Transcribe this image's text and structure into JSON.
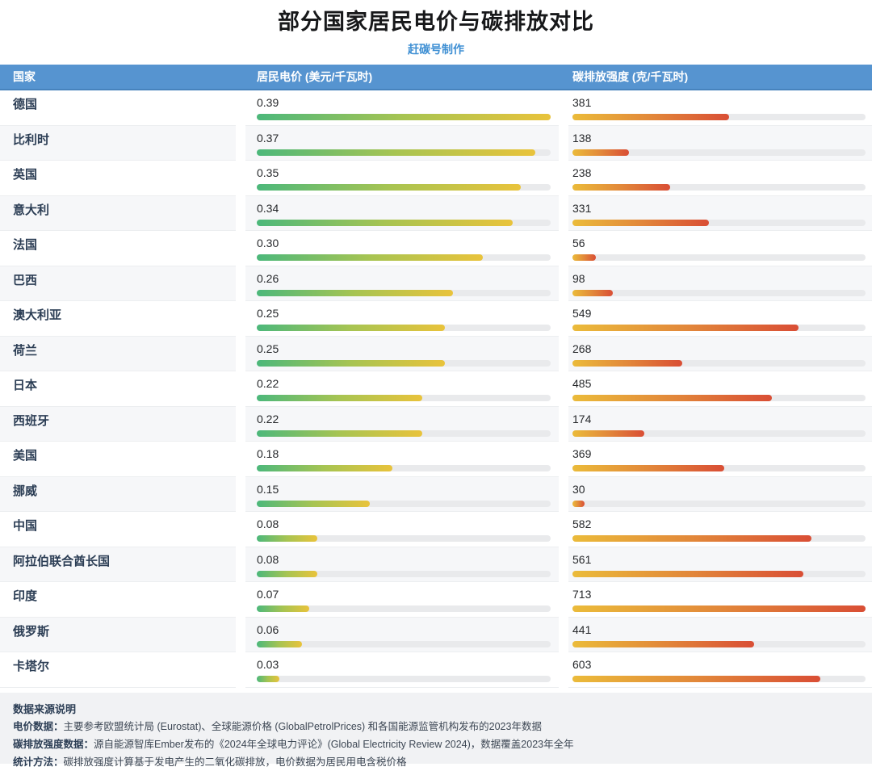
{
  "title": "部分国家居民电价与碳排放对比",
  "subtitle": "赶碳号制作",
  "columns": {
    "country": "国家",
    "price": "居民电价 (美元/千瓦时)",
    "carbon": "碳排放强度 (克/千瓦时)"
  },
  "chart_data": {
    "type": "bar",
    "orientation": "horizontal",
    "title": "部分国家居民电价与碳排放对比",
    "categories": [
      "德国",
      "比利时",
      "英国",
      "意大利",
      "法国",
      "巴西",
      "澳大利亚",
      "荷兰",
      "日本",
      "西班牙",
      "美国",
      "挪威",
      "中国",
      "阿拉伯联合酋长国",
      "印度",
      "俄罗斯",
      "卡塔尔"
    ],
    "series": [
      {
        "name": "居民电价 (美元/千瓦时)",
        "values": [
          0.39,
          0.37,
          0.35,
          0.34,
          0.3,
          0.26,
          0.25,
          0.25,
          0.22,
          0.22,
          0.18,
          0.15,
          0.08,
          0.08,
          0.07,
          0.06,
          0.03
        ],
        "labels": [
          "0.39",
          "0.37",
          "0.35",
          "0.34",
          "0.30",
          "0.26",
          "0.25",
          "0.25",
          "0.22",
          "0.22",
          "0.18",
          "0.15",
          "0.08",
          "0.08",
          "0.07",
          "0.06",
          "0.03"
        ],
        "axis_max": 0.39,
        "bar_gradient": [
          "#4cb87b",
          "#a7c452",
          "#e9c33b"
        ]
      },
      {
        "name": "碳排放强度 (克/千瓦时)",
        "values": [
          381,
          138,
          238,
          331,
          56,
          98,
          549,
          268,
          485,
          174,
          369,
          30,
          582,
          561,
          713,
          441,
          603
        ],
        "labels": [
          "381",
          "138",
          "238",
          "331",
          "56",
          "98",
          "549",
          "268",
          "485",
          "174",
          "369",
          "30",
          "582",
          "561",
          "713",
          "441",
          "603"
        ],
        "axis_max": 713,
        "bar_gradient": [
          "#ebbb3a",
          "#e2883a",
          "#d94e35"
        ]
      }
    ],
    "legend": false,
    "grid": false,
    "track_color": "#e9eaec"
  },
  "footer": {
    "heading": "数据来源说明",
    "notes": [
      {
        "label": "电价数据：",
        "text": "主要参考欧盟统计局 (Eurostat)、全球能源价格 (GlobalPetrolPrices) 和各国能源监管机构发布的2023年数据"
      },
      {
        "label": "碳排放强度数据：",
        "text": "源自能源智库Ember发布的《2024年全球电力评论》(Global Electricity Review 2024)，数据覆盖2023年全年"
      },
      {
        "label": "统计方法：",
        "text": "碳排放强度计算基于发电产生的二氧化碳排放，电价数据为居民用电含税价格"
      }
    ]
  },
  "colors": {
    "header_bg": "#5694d0",
    "header_border": "#4783bd",
    "subtitle_blue": "#3e8fd3",
    "row_alt_bg": "#f6f7f9",
    "country_text": "#2c3e55",
    "track": "#e9eaec"
  }
}
